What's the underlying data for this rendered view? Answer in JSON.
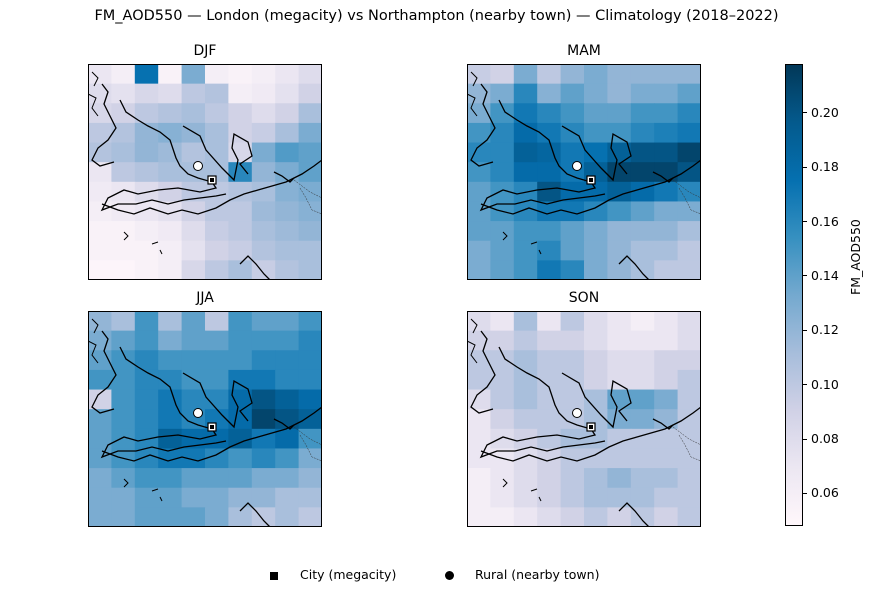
{
  "title": "FM_AOD550 — London (megacity) vs Northampton (nearby town) — Climatology (2018–2022)",
  "colorbar": {
    "label": "FM_AOD550",
    "vmin": 0.048,
    "vmax": 0.218,
    "ticks": [
      "0.06",
      "0.08",
      "0.10",
      "0.12",
      "0.14",
      "0.16",
      "0.18",
      "0.20"
    ],
    "colormap": [
      "#fff7fb",
      "#ece7f2",
      "#d0d1e6",
      "#a6bddb",
      "#74a9cf",
      "#3690c0",
      "#0570b0",
      "#045a8d",
      "#023858"
    ]
  },
  "legend": {
    "city_label": "City (megacity)",
    "rural_label": "Rural (nearby town)"
  },
  "chart_data": {
    "type": "heatmap",
    "variable": "FM_AOD550",
    "markers": {
      "city": {
        "name": "London",
        "shape": "square"
      },
      "rural": {
        "name": "Northampton",
        "shape": "circle"
      }
    },
    "panels": [
      {
        "title": "DJF",
        "grid": [
          [
            0.07,
            0.06,
            0.175,
            0.055,
            0.13,
            0.06,
            0.055,
            0.06,
            0.07,
            0.08
          ],
          [
            0.08,
            0.075,
            0.085,
            0.08,
            0.1,
            0.105,
            0.06,
            0.065,
            0.075,
            0.09
          ],
          [
            0.085,
            0.09,
            0.1,
            0.105,
            0.11,
            0.1,
            0.09,
            0.08,
            0.09,
            0.11
          ],
          [
            0.1,
            0.105,
            0.12,
            0.125,
            0.12,
            0.11,
            0.09,
            0.095,
            0.11,
            0.13
          ],
          [
            0.105,
            0.11,
            0.12,
            0.115,
            0.105,
            0.11,
            0.085,
            0.13,
            0.145,
            0.14
          ],
          [
            0.07,
            0.1,
            0.105,
            0.11,
            0.11,
            0.11,
            0.16,
            0.12,
            0.13,
            0.14
          ],
          [
            0.065,
            0.07,
            0.08,
            0.09,
            0.1,
            0.1,
            0.105,
            0.11,
            0.125,
            0.13
          ],
          [
            0.06,
            0.065,
            0.07,
            0.075,
            0.09,
            0.1,
            0.1,
            0.115,
            0.12,
            0.125
          ],
          [
            0.055,
            0.055,
            0.06,
            0.065,
            0.08,
            0.095,
            0.1,
            0.11,
            0.115,
            0.12
          ],
          [
            0.055,
            0.055,
            0.055,
            0.06,
            0.075,
            0.09,
            0.095,
            0.105,
            0.11,
            0.11
          ],
          [
            0.05,
            0.05,
            0.055,
            0.06,
            0.085,
            0.1,
            0.11,
            0.095,
            0.105,
            0.11
          ]
        ]
      },
      {
        "title": "MAM",
        "grid": [
          [
            0.095,
            0.09,
            0.13,
            0.1,
            0.12,
            0.13,
            0.12,
            0.12,
            0.12,
            0.12
          ],
          [
            0.12,
            0.13,
            0.16,
            0.125,
            0.14,
            0.13,
            0.12,
            0.13,
            0.13,
            0.14
          ],
          [
            0.13,
            0.15,
            0.17,
            0.16,
            0.15,
            0.14,
            0.14,
            0.15,
            0.15,
            0.16
          ],
          [
            0.15,
            0.16,
            0.18,
            0.17,
            0.16,
            0.15,
            0.15,
            0.16,
            0.165,
            0.17
          ],
          [
            0.16,
            0.16,
            0.19,
            0.185,
            0.17,
            0.175,
            0.19,
            0.2,
            0.2,
            0.21
          ],
          [
            0.15,
            0.16,
            0.18,
            0.18,
            0.17,
            0.19,
            0.21,
            0.21,
            0.21,
            0.2
          ],
          [
            0.14,
            0.15,
            0.16,
            0.2,
            0.18,
            0.18,
            0.19,
            0.18,
            0.17,
            0.16
          ],
          [
            0.14,
            0.15,
            0.16,
            0.17,
            0.17,
            0.16,
            0.15,
            0.14,
            0.13,
            0.13
          ],
          [
            0.14,
            0.14,
            0.15,
            0.15,
            0.14,
            0.13,
            0.12,
            0.12,
            0.12,
            0.11
          ],
          [
            0.13,
            0.14,
            0.15,
            0.16,
            0.14,
            0.13,
            0.12,
            0.11,
            0.11,
            0.1
          ],
          [
            0.13,
            0.14,
            0.15,
            0.17,
            0.16,
            0.13,
            0.12,
            0.11,
            0.1,
            0.1
          ]
        ]
      },
      {
        "title": "JJA",
        "grid": [
          [
            0.12,
            0.11,
            0.15,
            0.11,
            0.14,
            0.1,
            0.15,
            0.14,
            0.14,
            0.15
          ],
          [
            0.13,
            0.14,
            0.15,
            0.13,
            0.14,
            0.14,
            0.15,
            0.15,
            0.15,
            0.16
          ],
          [
            0.14,
            0.15,
            0.16,
            0.15,
            0.15,
            0.15,
            0.15,
            0.16,
            0.16,
            0.16
          ],
          [
            0.15,
            0.15,
            0.16,
            0.16,
            0.15,
            0.15,
            0.17,
            0.17,
            0.16,
            0.16
          ],
          [
            0.09,
            0.15,
            0.16,
            0.17,
            0.16,
            0.16,
            0.18,
            0.2,
            0.19,
            0.18
          ],
          [
            0.14,
            0.15,
            0.16,
            0.17,
            0.16,
            0.17,
            0.18,
            0.21,
            0.2,
            0.19
          ],
          [
            0.14,
            0.15,
            0.16,
            0.19,
            0.18,
            0.18,
            0.19,
            0.17,
            0.18,
            0.15
          ],
          [
            0.14,
            0.15,
            0.16,
            0.17,
            0.17,
            0.16,
            0.15,
            0.16,
            0.15,
            0.13
          ],
          [
            0.13,
            0.14,
            0.15,
            0.15,
            0.14,
            0.14,
            0.14,
            0.13,
            0.13,
            0.12
          ],
          [
            0.13,
            0.13,
            0.14,
            0.14,
            0.13,
            0.13,
            0.12,
            0.12,
            0.11,
            0.11
          ],
          [
            0.13,
            0.13,
            0.14,
            0.14,
            0.14,
            0.13,
            0.11,
            0.1,
            0.11,
            0.1
          ]
        ]
      },
      {
        "title": "SON",
        "grid": [
          [
            0.08,
            0.07,
            0.11,
            0.07,
            0.1,
            0.08,
            0.07,
            0.06,
            0.07,
            0.08
          ],
          [
            0.09,
            0.09,
            0.1,
            0.09,
            0.09,
            0.08,
            0.07,
            0.07,
            0.07,
            0.08
          ],
          [
            0.1,
            0.1,
            0.11,
            0.1,
            0.1,
            0.09,
            0.08,
            0.08,
            0.09,
            0.09
          ],
          [
            0.1,
            0.1,
            0.11,
            0.1,
            0.1,
            0.09,
            0.08,
            0.08,
            0.09,
            0.1
          ],
          [
            0.08,
            0.1,
            0.11,
            0.1,
            0.1,
            0.11,
            0.14,
            0.14,
            0.13,
            0.1
          ],
          [
            0.07,
            0.09,
            0.1,
            0.1,
            0.1,
            0.11,
            0.13,
            0.13,
            0.12,
            0.1
          ],
          [
            0.07,
            0.08,
            0.09,
            0.1,
            0.11,
            0.11,
            0.1,
            0.1,
            0.1,
            0.1
          ],
          [
            0.07,
            0.07,
            0.08,
            0.09,
            0.1,
            0.1,
            0.1,
            0.1,
            0.1,
            0.1
          ],
          [
            0.06,
            0.07,
            0.08,
            0.09,
            0.1,
            0.11,
            0.12,
            0.11,
            0.11,
            0.1
          ],
          [
            0.06,
            0.07,
            0.08,
            0.09,
            0.1,
            0.11,
            0.11,
            0.11,
            0.1,
            0.1
          ],
          [
            0.06,
            0.06,
            0.07,
            0.08,
            0.09,
            0.1,
            0.09,
            0.1,
            0.09,
            0.1
          ]
        ]
      }
    ]
  }
}
